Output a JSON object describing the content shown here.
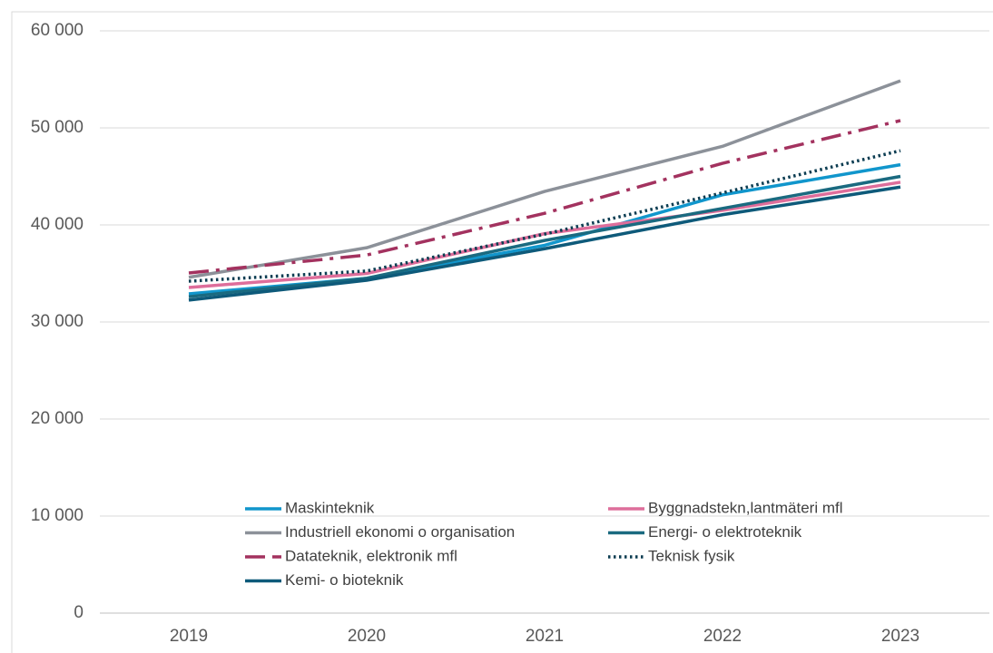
{
  "chart_data": {
    "type": "line",
    "x": [
      "2019",
      "2020",
      "2021",
      "2022",
      "2023"
    ],
    "ylim": [
      0,
      60000
    ],
    "yticks": [
      0,
      {
        "value": 10000,
        "label": "10 000"
      },
      {
        "value": 20000,
        "label": "20 000"
      },
      {
        "value": 30000,
        "label": "30 000"
      },
      {
        "value": 40000,
        "label": "40 000"
      },
      {
        "value": 50000,
        "label": "50 000"
      },
      {
        "value": 60000,
        "label": "60 000"
      }
    ],
    "grid": true,
    "series": [
      {
        "name": "Maskinteknik",
        "color": "#1196cc",
        "dash": "solid",
        "values": [
          32900,
          34500,
          37900,
          43100,
          46200
        ]
      },
      {
        "name": "Byggnadstekn,lantmäteri mfl",
        "color": "#de6e9b",
        "dash": "solid",
        "values": [
          33550,
          35000,
          39100,
          41500,
          44400
        ]
      },
      {
        "name": "Industriell ekonomi o organisation",
        "color": "#8c9199",
        "dash": "solid",
        "values": [
          34600,
          37650,
          43450,
          48100,
          54850
        ]
      },
      {
        "name": "Energi- o elektroteknik",
        "color": "#1a6a80",
        "dash": "solid",
        "values": [
          32600,
          34500,
          38400,
          41700,
          45000
        ]
      },
      {
        "name": "Datateknik, elektronik mfl",
        "color": "#a3325f",
        "dash": "dashdot",
        "values": [
          35050,
          36900,
          41200,
          46350,
          50750
        ]
      },
      {
        "name": "Teknisk fysik",
        "color": "#0c3d52",
        "dash": "dot",
        "values": [
          34200,
          35250,
          39050,
          43300,
          47650
        ]
      },
      {
        "name": "Kemi- o bioteknik",
        "color": "#0e5a7a",
        "dash": "solid",
        "values": [
          32250,
          34300,
          37550,
          41050,
          43900
        ]
      }
    ]
  }
}
